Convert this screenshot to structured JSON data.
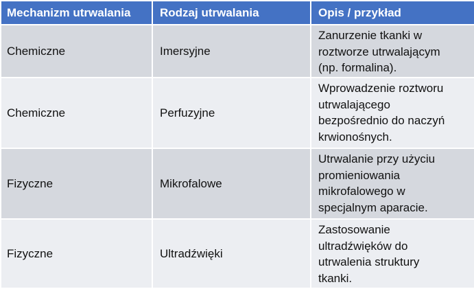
{
  "table": {
    "header": [
      "Mechanizm utrwalania",
      "Rodzaj utrwalania",
      "Opis / przykład"
    ],
    "rows": [
      [
        "Chemiczne",
        "Imersyjne",
        [
          "Zanurzenie tkanki w",
          "roztworze utrwalającym",
          "(np. formalina)."
        ]
      ],
      [
        "Chemiczne",
        "Perfuzyjne",
        [
          "Wprowadzenie roztworu",
          "utrwalającego",
          "bezpośrednio do naczyń",
          "krwionośnych."
        ]
      ],
      [
        "Fizyczne",
        "Mikrofalowe",
        [
          "Utrwalanie przy użyciu",
          "promieniowania",
          "mikrofalowego w",
          "specjalnym aparacie."
        ]
      ],
      [
        "Fizyczne",
        "Ultradźwięki",
        [
          "Zastosowanie",
          "ultradźwięków do",
          "utrwalenia struktury",
          "tkanki."
        ]
      ]
    ]
  }
}
